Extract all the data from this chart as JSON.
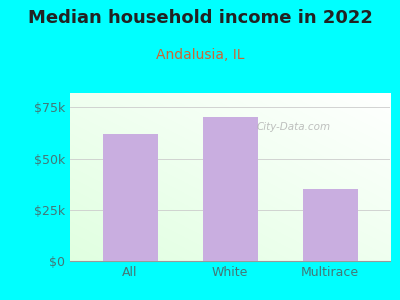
{
  "title": "Median household income in 2022",
  "subtitle": "Andalusia, IL",
  "categories": [
    "All",
    "White",
    "Multirace"
  ],
  "values": [
    62000,
    70500,
    35000
  ],
  "bar_color": "#c9aee0",
  "title_fontsize": 13,
  "title_color": "#222222",
  "subtitle_fontsize": 10,
  "subtitle_color": "#cc6633",
  "tick_label_color": "#447777",
  "background_color": "#00ffff",
  "ylim": [
    0,
    82000
  ],
  "yticks": [
    0,
    25000,
    50000,
    75000
  ],
  "ytick_labels": [
    "$0",
    "$25k",
    "$50k",
    "$75k"
  ],
  "watermark": "City-Data.com",
  "grid_color": "#cccccc",
  "bar_width": 0.55
}
